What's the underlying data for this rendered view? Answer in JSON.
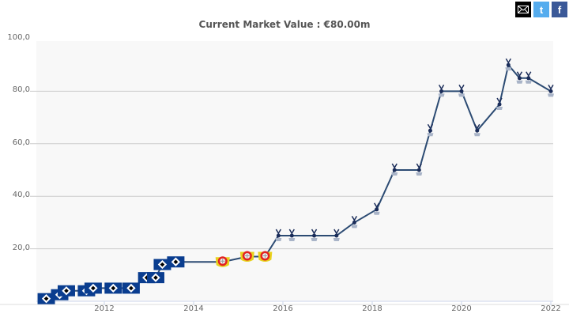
{
  "share": {
    "email_icon": "envelope-icon",
    "twitter_icon": "twitter-icon",
    "facebook_icon": "facebook-icon",
    "twitter_glyph": "t",
    "facebook_glyph": "f"
  },
  "colors": {
    "line": "#2c4b73",
    "hsv": "#0a3d8f",
    "leverkusen": "#e32221",
    "spurs": "#1b2d5a",
    "grid": "#cccccc",
    "plot_bg": "#f8f8f8"
  },
  "chart_data": {
    "type": "line",
    "title": "Current Market Value : €80.00m",
    "xlabel": "",
    "ylabel": "",
    "ylim": [
      0,
      100
    ],
    "xlim": [
      2010.6,
      2022.1
    ],
    "yticks": [
      "20,0",
      "40,0",
      "60,0",
      "80,0",
      "100,0"
    ],
    "ytick_values": [
      20,
      40,
      60,
      80,
      100
    ],
    "xticks": [
      "2012",
      "2014",
      "2016",
      "2018",
      "2020",
      "2022"
    ],
    "xtick_values": [
      2012,
      2014,
      2016,
      2018,
      2020,
      2022
    ],
    "grid": true,
    "series": [
      {
        "name": "Hamburger SV",
        "points": [
          [
            2010.7,
            1
          ],
          [
            2011.0,
            2.5
          ],
          [
            2011.15,
            4
          ],
          [
            2011.6,
            4
          ],
          [
            2011.75,
            5
          ],
          [
            2012.2,
            5
          ],
          [
            2012.6,
            5
          ],
          [
            2012.95,
            9
          ],
          [
            2013.15,
            9
          ],
          [
            2013.3,
            14
          ],
          [
            2013.6,
            15
          ]
        ]
      },
      {
        "name": "Bayer Leverkusen",
        "points": [
          [
            2014.65,
            15
          ],
          [
            2015.2,
            17
          ],
          [
            2015.6,
            17
          ]
        ]
      },
      {
        "name": "Tottenham Hotspur",
        "points": [
          [
            2015.9,
            25
          ],
          [
            2016.2,
            25
          ],
          [
            2016.7,
            25
          ],
          [
            2017.2,
            25
          ],
          [
            2017.6,
            30
          ],
          [
            2018.1,
            35
          ],
          [
            2018.5,
            50
          ],
          [
            2019.05,
            50
          ],
          [
            2019.3,
            65
          ],
          [
            2019.55,
            80
          ],
          [
            2020.0,
            80
          ],
          [
            2020.35,
            65
          ],
          [
            2020.85,
            75
          ],
          [
            2021.05,
            90
          ],
          [
            2021.3,
            85
          ],
          [
            2021.5,
            85
          ],
          [
            2022.0,
            80
          ]
        ]
      }
    ]
  }
}
